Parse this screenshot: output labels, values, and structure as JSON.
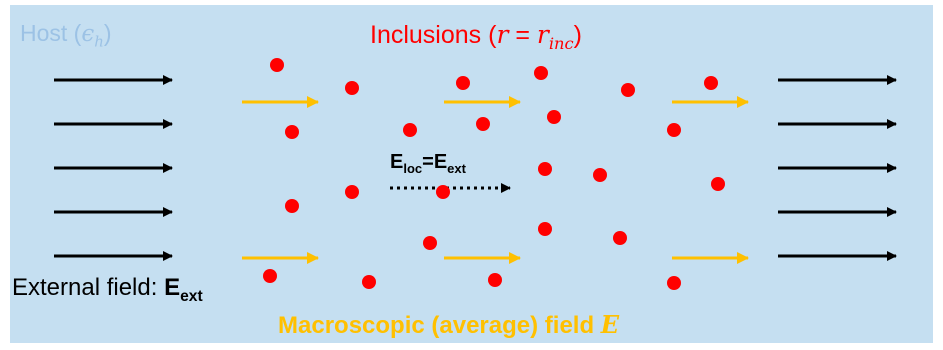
{
  "colors": {
    "host_background": "#c5dff1",
    "host_label": "#9cc2e5",
    "inclusion": "#ff0000",
    "external_arrow": "#000000",
    "macroscopic_arrow": "#ffc000"
  },
  "labels": {
    "host_text": "Host (",
    "host_symbol": "ϵ",
    "host_sub": "h",
    "host_close": ")",
    "inclusions_text": "Inclusions (",
    "inclusions_r": "r",
    "inclusions_eq": " = ",
    "inclusions_r2": "r",
    "inclusions_sub": "inc",
    "inclusions_close": ")",
    "external_prefix": "External field: ",
    "external_E": "E",
    "external_sub": "ext",
    "eloc_E": "E",
    "eloc_sub": "loc",
    "eloc_eq": "=E",
    "eloc_sub2": "ext",
    "macro_text": "Macroscopic (average) field ",
    "macro_symbol": "E"
  },
  "icons": {
    "external_field_arrows": "arrow-right",
    "macroscopic_field_arrows": "arrow-right",
    "local_field_arrow": "dotted-arrow-right",
    "inclusions": "filled-circle"
  }
}
